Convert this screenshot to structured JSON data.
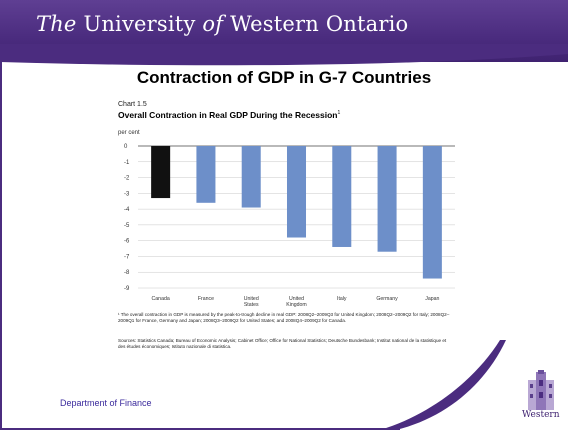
{
  "header": {
    "univ_the": "The",
    "univ_middle": " University ",
    "univ_of": "of",
    "univ_end": " Western Ontario"
  },
  "slide_title": "Contraction of GDP in G-7 Countries",
  "chart_header": {
    "number": "Chart 1.5",
    "title": "Overall Contraction in Real GDP During the Recession",
    "title_superscript": "1",
    "unit": "per cent"
  },
  "chart_data": {
    "type": "bar",
    "title": "Overall Contraction in Real GDP During the Recession",
    "ylabel": "per cent",
    "xlabel": "",
    "categories": [
      "Canada",
      "France",
      "United States",
      "United Kingdom",
      "Italy",
      "Germany",
      "Japan"
    ],
    "category_lines": [
      [
        "Canada"
      ],
      [
        "France"
      ],
      [
        "United",
        "States"
      ],
      [
        "United",
        "Kingdom"
      ],
      [
        "Italy"
      ],
      [
        "Germany"
      ],
      [
        "Japan"
      ]
    ],
    "values": [
      -3.3,
      -3.6,
      -3.9,
      -5.8,
      -6.4,
      -6.7,
      -8.4
    ],
    "ylim": [
      -9,
      0
    ],
    "yticks": [
      "0",
      "-1",
      "-2",
      "-3",
      "-4",
      "-5",
      "-6",
      "-7",
      "-8",
      "-9"
    ],
    "grid": true,
    "colors": {
      "highlight": "#111111",
      "default": "#6d8fc9"
    }
  },
  "footnote": "¹ The overall contraction in GDP is measured by the peak-to-trough decline in real GDP: 2008Q2–2009Q3 for United Kingdom; 2008Q2–2009Q2 for Italy; 2008Q2–2009Q1 for France, Germany and Japan; 2008Q3–2009Q2 for United States; and 2008Q4–2009Q2 for Canada.",
  "sources": "Sources: Statistics Canada; Bureau of Economic Analysis; Cabinet Office; Office for National Statistics; Deutsche Bundesbank; Institut national de la statistique et des études économiques; Istituto nazionale di statistica.",
  "department": "Department of Finance",
  "logo_text": "Western",
  "colors": {
    "brand_purple": "#4b2c7f",
    "department_text": "#3a2a9c"
  }
}
